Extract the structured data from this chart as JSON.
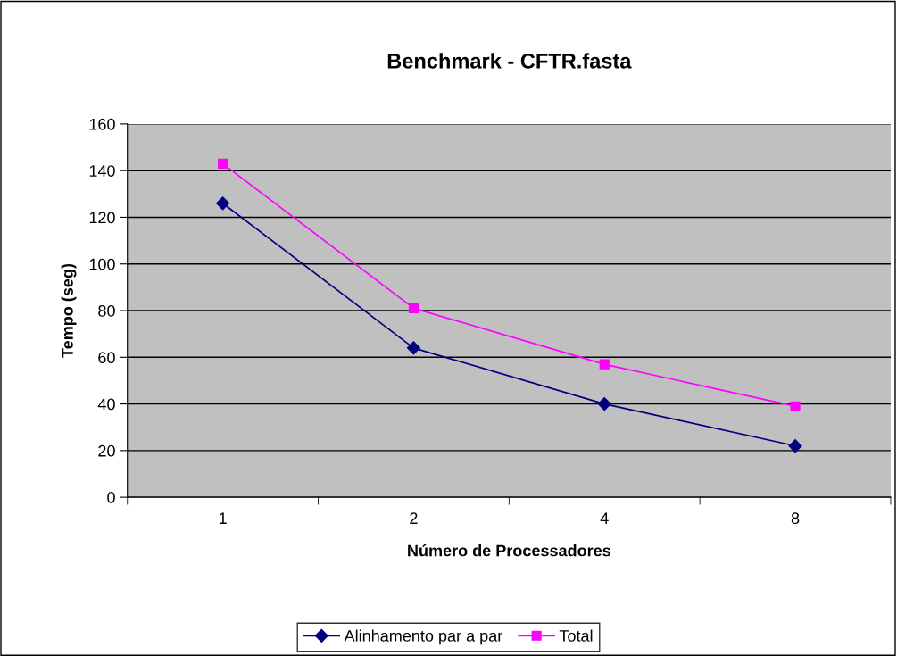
{
  "chart_data": {
    "type": "line",
    "title": "Benchmark - CFTR.fasta",
    "xlabel": "Número de Processadores",
    "ylabel": "Tempo (seg)",
    "categories": [
      "1",
      "2",
      "4",
      "8"
    ],
    "series": [
      {
        "name": "Alinhamento par a par",
        "color": "#000080",
        "marker": "diamond",
        "values": [
          126,
          64,
          40,
          22
        ]
      },
      {
        "name": "Total",
        "color": "#ff00ff",
        "marker": "square",
        "values": [
          143,
          81,
          57,
          39
        ]
      }
    ],
    "ylim": [
      0,
      160
    ],
    "yticks": [
      0,
      20,
      40,
      60,
      80,
      100,
      120,
      140,
      160
    ],
    "grid": "y",
    "legend": "bottom",
    "line_style": "solid"
  }
}
